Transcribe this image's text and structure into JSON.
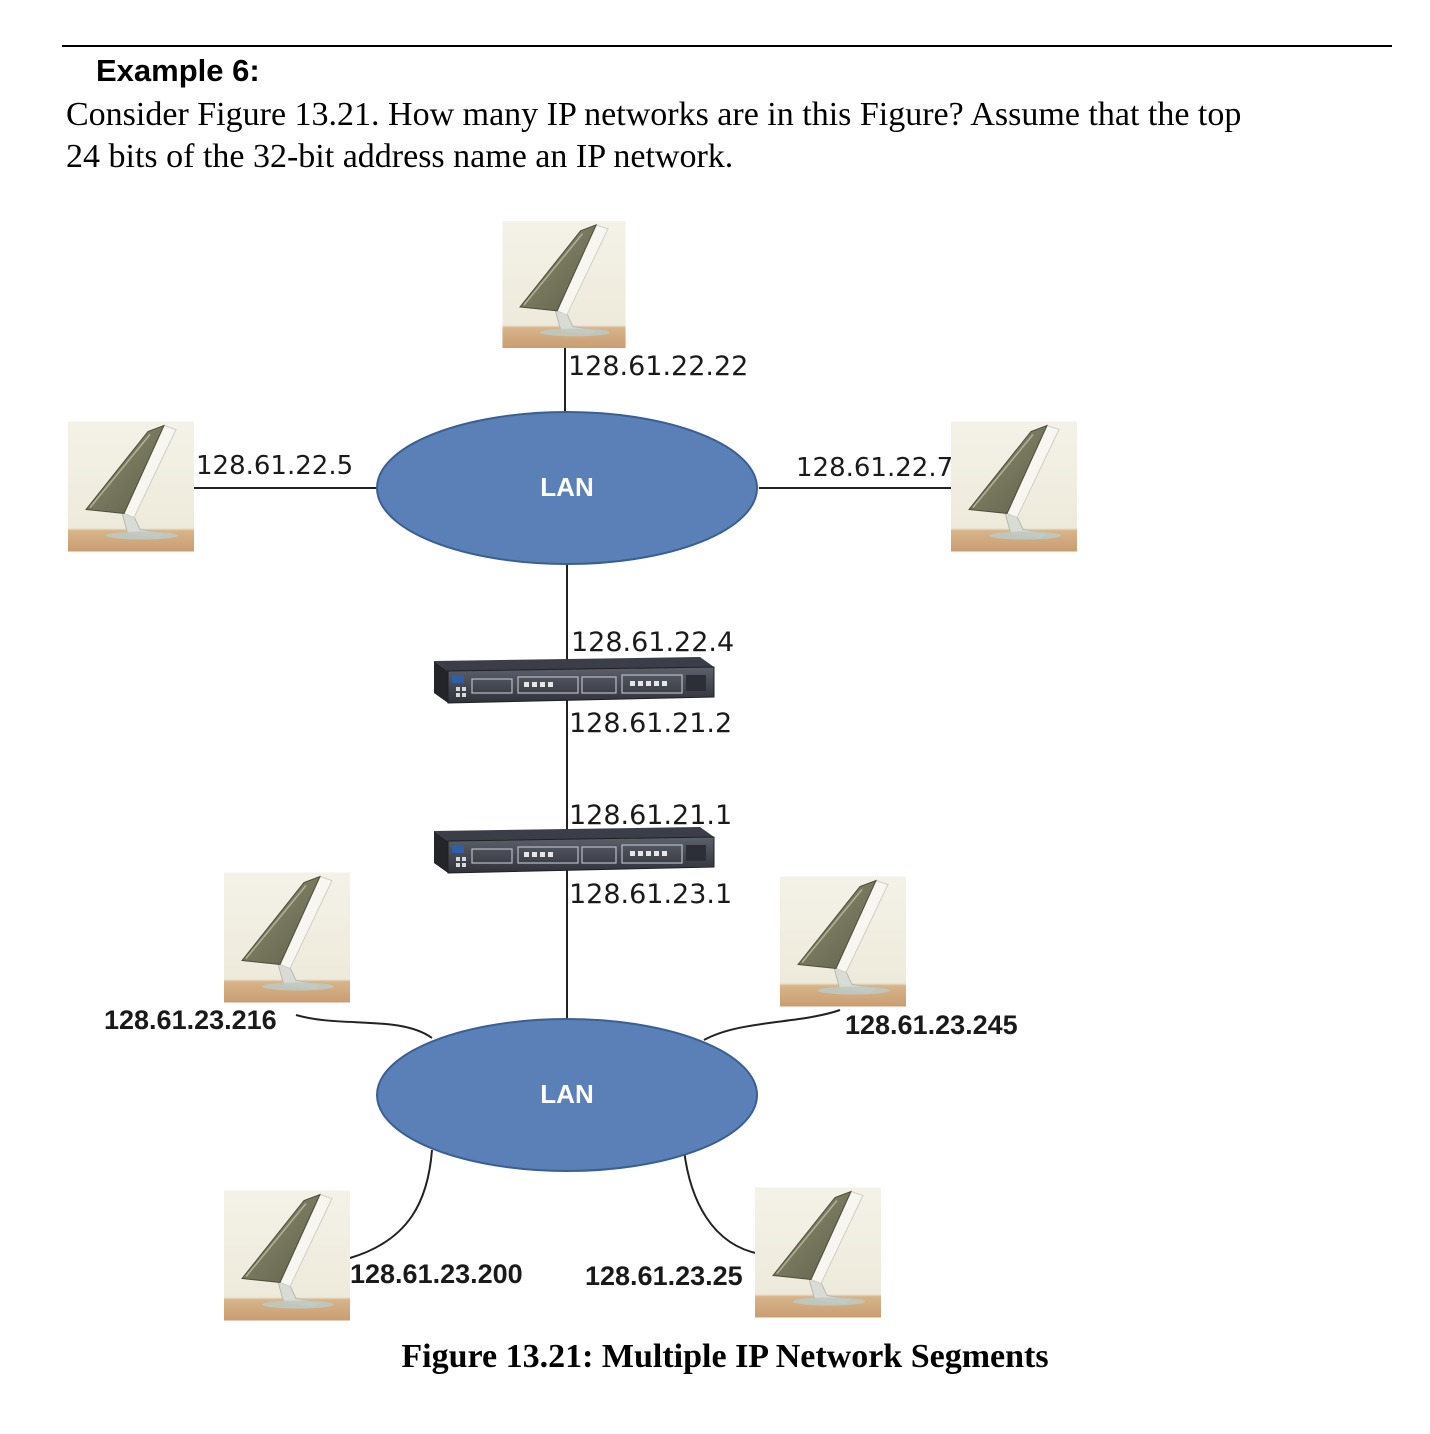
{
  "example": {
    "heading": "Example 6:",
    "line1": "Consider Figure 13.21.  How many IP networks are in this Figure?  Assume that the top",
    "line2": "24 bits of the 32-bit address name an IP network."
  },
  "figure": {
    "caption": "Figure 13.21: Multiple IP Network Segments",
    "lans": {
      "top": "LAN",
      "bottom": "LAN"
    },
    "routers": {
      "upper": {
        "top_address": "128.61.22.4",
        "bottom_address": "128.61.21.2"
      },
      "lower": {
        "top_address": "128.61.21.1",
        "bottom_address": "128.61.23.1"
      }
    },
    "hosts": {
      "top": "128.61.22.22",
      "left": "128.61.22.5",
      "right": "128.61.22.7",
      "bottom_upper_left": "128.61.23.216",
      "bottom_upper_right": "128.61.23.245",
      "bottom_lower_left": "128.61.23.200",
      "bottom_lower_right": "128.61.23.25"
    },
    "colors": {
      "lan_fill": "#5a80b7",
      "lan_stroke": "#3c5f92",
      "router_body": "#3a3d47"
    }
  }
}
